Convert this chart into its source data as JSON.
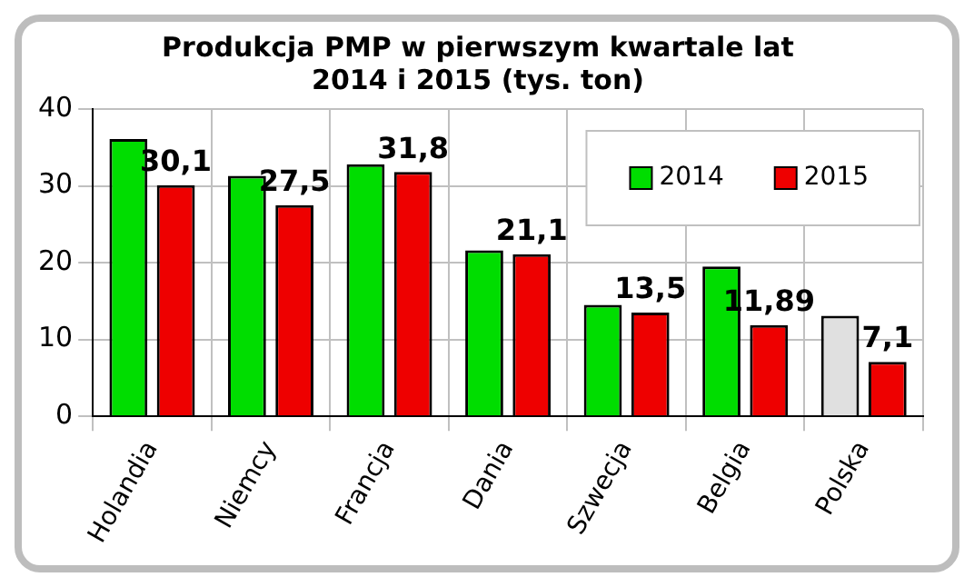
{
  "chart_data": {
    "type": "bar",
    "title": "Produkcja PMP w pierwszym kwartale lat\n2014 i 2015 (tys. ton)",
    "categories": [
      "Holandia",
      "Niemcy",
      "Francja",
      "Dania",
      "Szwecja",
      "Belgia",
      "Polska"
    ],
    "series": [
      {
        "name": "2014",
        "color": "#00dd00",
        "colors": [
          "#00dd00",
          "#00dd00",
          "#00dd00",
          "#00dd00",
          "#00dd00",
          "#00dd00",
          "#e0e0e0"
        ],
        "values": [
          36.1,
          31.3,
          32.8,
          21.6,
          14.5,
          19.5,
          13.1
        ]
      },
      {
        "name": "2015",
        "color": "#ee0000",
        "values": [
          30.1,
          27.5,
          31.8,
          21.1,
          13.5,
          11.89,
          7.1
        ],
        "value_labels": [
          "30,1",
          "27,5",
          "31,8",
          "21,1",
          "13,5",
          "11,89",
          "7,1"
        ]
      }
    ],
    "ylim": [
      0,
      40
    ],
    "yticks": [
      0,
      10,
      20,
      30,
      40
    ],
    "grid": true,
    "legend": "top right"
  }
}
